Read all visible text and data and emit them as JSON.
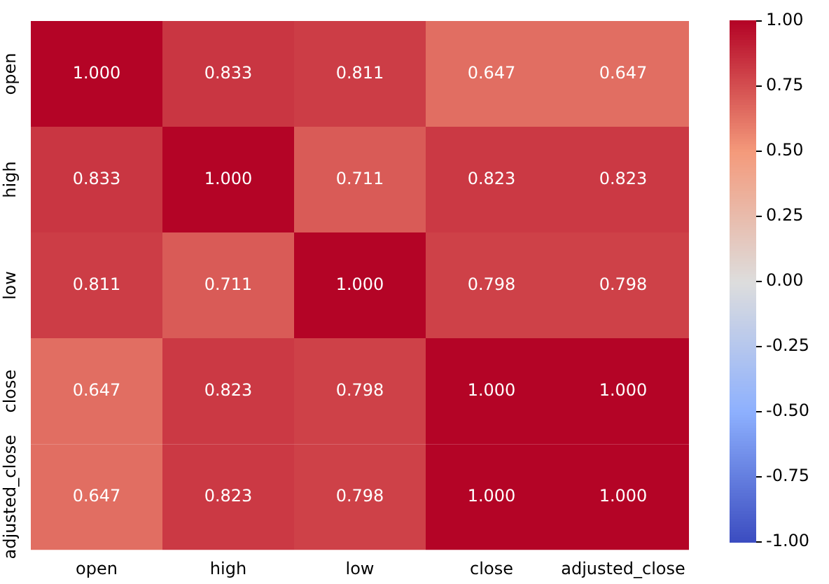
{
  "chart_data": {
    "type": "heatmap",
    "categories": [
      "open",
      "high",
      "low",
      "close",
      "adjusted_close"
    ],
    "y_categories": [
      "open",
      "high",
      "low",
      "close",
      "adjusted_close"
    ],
    "cells": [
      [
        1.0,
        0.833,
        0.811,
        0.647,
        0.647
      ],
      [
        0.833,
        1.0,
        0.711,
        0.823,
        0.823
      ],
      [
        0.811,
        0.711,
        1.0,
        0.798,
        0.798
      ],
      [
        0.647,
        0.823,
        0.798,
        1.0,
        1.0
      ],
      [
        0.647,
        0.823,
        0.798,
        1.0,
        1.0
      ]
    ],
    "cell_labels": [
      [
        "1.000",
        "0.833",
        "0.811",
        "0.647",
        "0.647"
      ],
      [
        "0.833",
        "1.000",
        "0.711",
        "0.823",
        "0.823"
      ],
      [
        "0.811",
        "0.711",
        "1.000",
        "0.798",
        "0.798"
      ],
      [
        "0.647",
        "0.823",
        "0.798",
        "1.000",
        "1.000"
      ],
      [
        "0.647",
        "0.823",
        "0.798",
        "1.000",
        "1.000"
      ]
    ],
    "clim": [
      -1,
      1
    ],
    "cticks": [
      {
        "value": -1,
        "label": "-1.00"
      },
      {
        "value": -0.75,
        "label": "-0.75"
      },
      {
        "value": -0.5,
        "label": "-0.50"
      },
      {
        "value": -0.25,
        "label": "-0.25"
      },
      {
        "value": 0,
        "label": "0.00"
      },
      {
        "value": 0.25,
        "label": "0.25"
      },
      {
        "value": 0.5,
        "label": "0.50"
      },
      {
        "value": 0.75,
        "label": "0.75"
      },
      {
        "value": 1,
        "label": "1.00"
      }
    ]
  }
}
